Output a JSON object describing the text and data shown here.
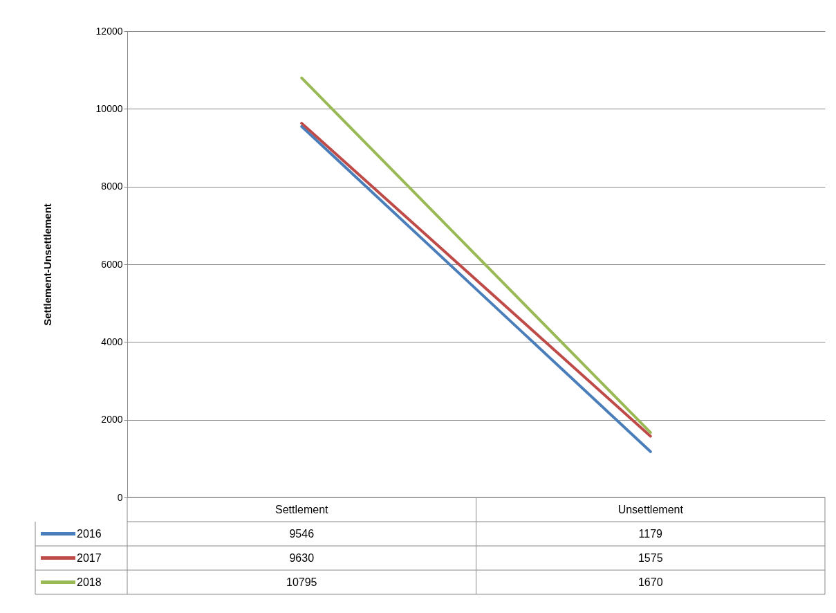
{
  "chart_data": {
    "type": "line",
    "ylabel": "Settlement-Unsettlement",
    "categories": [
      "Settlement",
      "Unsettlement"
    ],
    "series": [
      {
        "name": "2016",
        "color": "#4a7ebb",
        "values": [
          9546,
          1179
        ]
      },
      {
        "name": "2017",
        "color": "#be4b48",
        "values": [
          9630,
          1575
        ]
      },
      {
        "name": "2018",
        "color": "#98b954",
        "values": [
          10795,
          1670
        ]
      }
    ],
    "ylim": [
      0,
      12000
    ],
    "yticks": [
      0,
      2000,
      4000,
      6000,
      8000,
      10000,
      12000
    ],
    "grid": "y",
    "legend": "bottom",
    "data_labels": true
  }
}
